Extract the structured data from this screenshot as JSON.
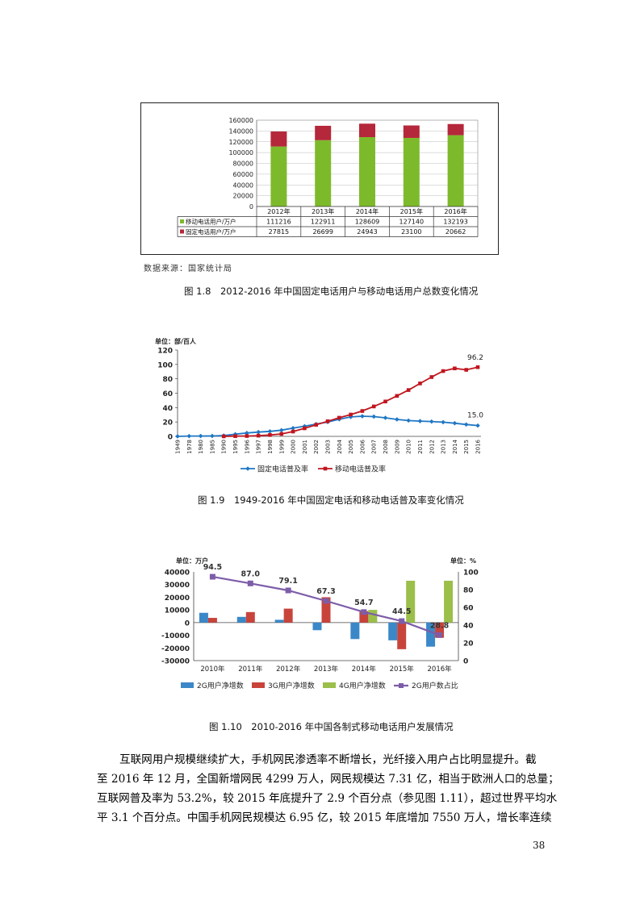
{
  "figure1": {
    "chart_data": {
      "type": "bar",
      "stacked": true,
      "categories": [
        "2012年",
        "2013年",
        "2014年",
        "2015年",
        "2016年"
      ],
      "series": [
        {
          "name": "移动电话用户/万户",
          "values": [
            111216,
            122911,
            128609,
            127140,
            132193
          ],
          "color": "#7dba2b"
        },
        {
          "name": "固定电话用户/万户",
          "values": [
            27815,
            26699,
            24943,
            23100,
            20662
          ],
          "color": "#b5273a"
        }
      ],
      "ylim": [
        0,
        160000
      ],
      "yticks": [
        0,
        20000,
        40000,
        60000,
        80000,
        100000,
        120000,
        140000,
        160000
      ],
      "grid": true,
      "legend": "data table below chart"
    },
    "table_values": [
      [
        "111216",
        "122911",
        "128609",
        "127140",
        "132193"
      ],
      [
        "27815",
        "26699",
        "24943",
        "23100",
        "20662"
      ]
    ],
    "source": "数据来源：国家统计局",
    "caption": "图 1.8　2012-2016 年中国固定电话用户与移动电话用户总数变化情况"
  },
  "figure2": {
    "chart_data": {
      "type": "line",
      "unit_label": "单位：部/百人",
      "x": [
        "1949",
        "1978",
        "1980",
        "1985",
        "1990",
        "1995",
        "1996",
        "1997",
        "1998",
        "1999",
        "2000",
        "2001",
        "2002",
        "2003",
        "2004",
        "2005",
        "2006",
        "2007",
        "2008",
        "2009",
        "2010",
        "2011",
        "2012",
        "2013",
        "2014",
        "2015",
        "2016"
      ],
      "series": [
        {
          "name": "固定电话普及率",
          "color": "#1f77c4",
          "marker": "diamond",
          "values": [
            0.05,
            0.4,
            0.5,
            0.6,
            1.1,
            3.0,
            4.7,
            6.0,
            7.0,
            8.6,
            11.5,
            14.1,
            17.0,
            20.0,
            23.8,
            27.0,
            28.0,
            27.5,
            25.8,
            23.6,
            22.0,
            21.2,
            20.6,
            19.7,
            18.3,
            16.5,
            15.0
          ]
        },
        {
          "name": "移动电话普及率",
          "color": "#c0161f",
          "marker": "square",
          "values": [
            null,
            null,
            null,
            null,
            0.05,
            0.3,
            0.5,
            1.0,
            1.9,
            3.4,
            6.7,
            11.2,
            16.1,
            21.0,
            25.9,
            30.3,
            35.3,
            41.6,
            48.5,
            56.3,
            64.4,
            73.6,
            82.5,
            90.8,
            94.5,
            92.5,
            96.2
          ]
        }
      ],
      "ylim": [
        0,
        120
      ],
      "yticks": [
        0,
        20,
        40,
        60,
        80,
        100,
        120
      ],
      "annotations": [
        "96.2",
        "15.0"
      ],
      "legend": "bottom"
    },
    "caption": "图 1.9　1949-2016 年中国固定电话和移动电话普及率变化情况"
  },
  "figure3": {
    "chart_data": {
      "type": "bar",
      "unit_left": "单位：万户",
      "unit_right": "单位：%",
      "categories": [
        "2010年",
        "2011年",
        "2012年",
        "2013年",
        "2014年",
        "2015年",
        "2016年"
      ],
      "series": [
        {
          "name": "2G用户净增数",
          "color": "#3b88c8",
          "values": [
            7700,
            4500,
            2200,
            -6000,
            -13000,
            -14000,
            -19000
          ]
        },
        {
          "name": "3G用户净增数",
          "color": "#c8443b",
          "values": [
            3700,
            8300,
            11000,
            20000,
            9000,
            -21000,
            -12000
          ]
        },
        {
          "name": "4G用户净增数",
          "color": "#9bbf4a",
          "values": [
            0,
            0,
            0,
            0,
            10000,
            33000,
            33000
          ]
        },
        {
          "name": "2G用户数占比",
          "type": "line",
          "axis": "right",
          "color": "#7d5da8",
          "values": [
            94.5,
            87.0,
            79.1,
            67.3,
            54.7,
            44.5,
            28.8
          ]
        }
      ],
      "ylim_left": [
        -30000,
        40000
      ],
      "yticks_left": [
        -30000,
        -20000,
        -10000,
        0,
        10000,
        20000,
        30000,
        40000
      ],
      "ylim_right": [
        0,
        100
      ],
      "yticks_right": [
        0,
        20,
        40,
        60,
        80,
        100
      ],
      "data_labels": [
        "94.5",
        "87.0",
        "79.1",
        "67.3",
        "54.7",
        "44.5",
        "28.8"
      ],
      "legend": "bottom"
    },
    "caption": "图 1.10　2010-2016 年中国各制式移动电话用户发展情况"
  },
  "body": {
    "lines": [
      "互联网用户规模继续扩大，手机网民渗透率不断增长，光纤接入用户占比明显提升。截",
      "至 2016 年 12 月，全国新增网民 4299 万人，网民规模达 7.31 亿，相当于欧洲人口的总量；",
      "互联网普及率为 53.2%，较 2015 年底提升了 2.9 个百分点（参见图 1.11），超过世界平均水",
      "平 3.1 个百分点。中国手机网民规模达 6.95 亿，较 2015 年底增加 7550 万人，增长率连续"
    ],
    "page_number": "38"
  }
}
